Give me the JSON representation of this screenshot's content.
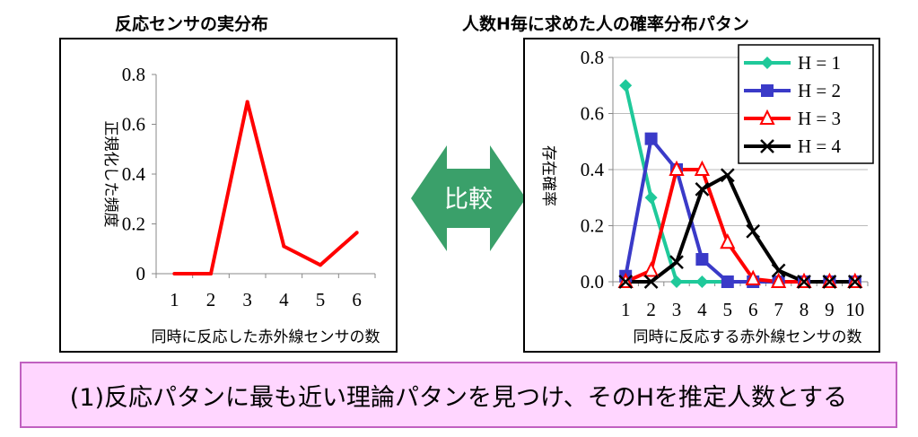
{
  "left_title": "反応センサの実分布",
  "right_title": "人数H毎に求めた人の確率分布パタン",
  "compare_label": "比較",
  "conclusion": "(1)反応パタンに最も近い理論パタンを見つけ、そのHを推定人数とする",
  "colors": {
    "left_line": "#ff0000",
    "compare_arrow": "#3aa06a",
    "conclusion_bg": "#ffd6ff"
  },
  "chart_data": [
    {
      "type": "line",
      "title": "反応センサの実分布",
      "xlabel": "同時に反応した赤外線センサの数",
      "ylabel": "正規化した頻度",
      "x": [
        1,
        2,
        3,
        4,
        5,
        6
      ],
      "x_ticks": [
        "1",
        "2",
        "3",
        "4",
        "5",
        "6"
      ],
      "y_ticks": [
        "0",
        "0.2",
        "0.4",
        "0.6",
        "0.8"
      ],
      "ylim": [
        0,
        0.8
      ],
      "grid": false,
      "series": [
        {
          "values": [
            0,
            0,
            0.69,
            0.11,
            0.035,
            0.165
          ],
          "color": "#ff0000"
        }
      ]
    },
    {
      "type": "line",
      "title": "人数H毎に求めた人の確率分布パタン",
      "xlabel": "同時に反応する赤外線センサの数",
      "ylabel": "存在確率",
      "x": [
        1,
        2,
        3,
        4,
        5,
        6,
        7,
        8,
        9,
        10
      ],
      "x_ticks": [
        "1",
        "2",
        "3",
        "4",
        "5",
        "6",
        "7",
        "8",
        "9",
        "10"
      ],
      "y_ticks": [
        "0.0",
        "0.2",
        "0.4",
        "0.6",
        "0.8"
      ],
      "ylim": [
        0,
        0.8
      ],
      "grid": true,
      "legend": "top-right",
      "series": [
        {
          "name": "H = 1",
          "color": "#1fc99a",
          "marker": "diamond",
          "values": [
            0.7,
            0.3,
            0,
            0,
            0,
            0,
            0,
            0,
            0,
            0
          ]
        },
        {
          "name": "H = 2",
          "color": "#3a3ac8",
          "marker": "square",
          "values": [
            0.02,
            0.51,
            0.4,
            0.08,
            0,
            0,
            0,
            0,
            0,
            0
          ]
        },
        {
          "name": "H = 3",
          "color": "#ff0000",
          "marker": "triangle-open",
          "values": [
            0,
            0.04,
            0.4,
            0.4,
            0.14,
            0.01,
            0,
            0,
            0,
            0
          ]
        },
        {
          "name": "H = 4",
          "color": "#000000",
          "marker": "x",
          "values": [
            0,
            0,
            0.07,
            0.33,
            0.38,
            0.18,
            0.04,
            0,
            0,
            0
          ]
        }
      ]
    }
  ]
}
